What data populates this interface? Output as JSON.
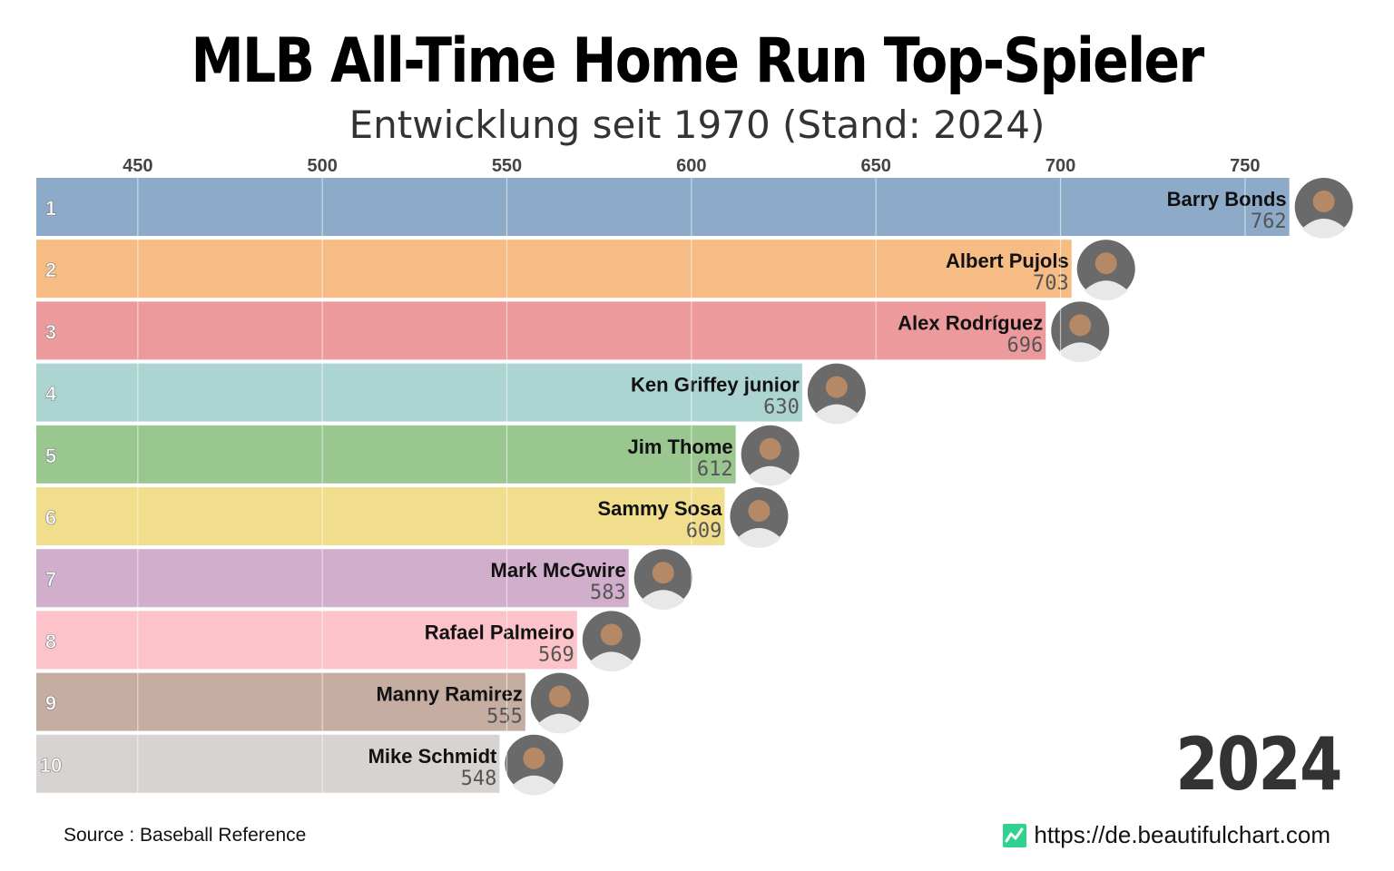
{
  "header": {
    "title": "MLB All-Time Home Run Top-Spieler",
    "subtitle": "Entwicklung seit 1970 (Stand: 2024)"
  },
  "year_label": "2024",
  "footer": {
    "source": "Source : Baseball Reference",
    "site": "https://de.beautifulchart.com",
    "site_logo_icon": "chart-line-icon",
    "site_logo_color": "#2fd38f"
  },
  "chart_data": {
    "type": "bar",
    "orientation": "horizontal",
    "title": "MLB All-Time Home Run Top-Spieler",
    "subtitle": "Entwicklung seit 1970 (Stand: 2024)",
    "xlim": [
      422.5,
      782
    ],
    "ticks": [
      450,
      500,
      550,
      600,
      650,
      700,
      750
    ],
    "grid": true,
    "bars": [
      {
        "rank": "1",
        "name": "Barry Bonds",
        "value": 762,
        "color": "#8eaac9",
        "avatar_icon": "player-photo-icon"
      },
      {
        "rank": "2",
        "name": "Albert Pujols",
        "value": 703,
        "color": "#f6bc84",
        "avatar_icon": "player-photo-icon"
      },
      {
        "rank": "3",
        "name": "Alex Rodríguez",
        "value": 696,
        "color": "#ec9a9c",
        "avatar_icon": "player-photo-icon"
      },
      {
        "rank": "4",
        "name": "Ken Griffey junior",
        "value": 630,
        "color": "#acd5d1",
        "avatar_icon": "player-photo-icon"
      },
      {
        "rank": "5",
        "name": "Jim Thome",
        "value": 612,
        "color": "#99c78f",
        "avatar_icon": "player-photo-icon"
      },
      {
        "rank": "6",
        "name": "Sammy Sosa",
        "value": 609,
        "color": "#f1de8d",
        "avatar_icon": "player-photo-icon"
      },
      {
        "rank": "7",
        "name": "Mark McGwire",
        "value": 583,
        "color": "#d1aecb",
        "avatar_icon": "player-photo-icon"
      },
      {
        "rank": "8",
        "name": "Rafael Palmeiro",
        "value": 569,
        "color": "#fcc3cb",
        "avatar_icon": "player-photo-icon"
      },
      {
        "rank": "9",
        "name": "Manny Ramirez",
        "value": 555,
        "color": "#c5ada2",
        "avatar_icon": "player-photo-icon"
      },
      {
        "rank": "10",
        "name": "Mike Schmidt",
        "value": 548,
        "color": "#d7d3d1",
        "avatar_icon": "player-photo-icon"
      }
    ]
  }
}
